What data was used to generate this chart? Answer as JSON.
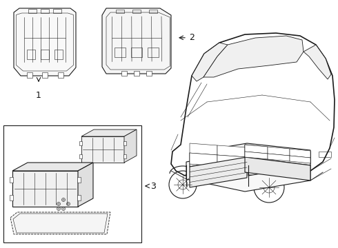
{
  "background_color": "#ffffff",
  "line_color": "#1a1a1a",
  "label_color": "#111111",
  "figure_width": 4.9,
  "figure_height": 3.6,
  "dpi": 100
}
